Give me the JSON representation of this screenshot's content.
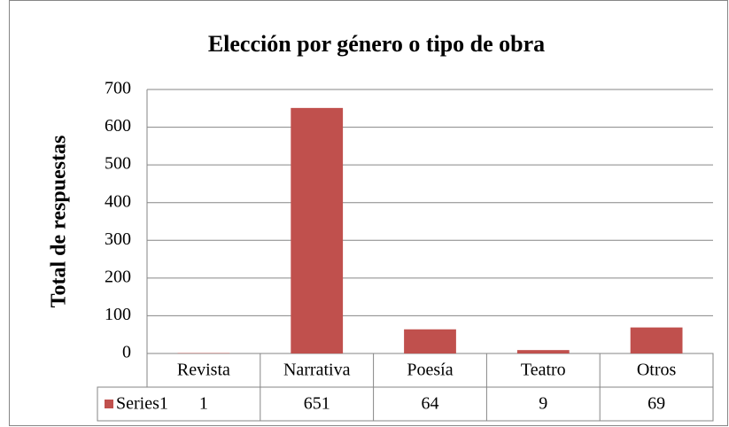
{
  "chart_data": {
    "type": "bar",
    "title": "Elección por género o tipo de obra",
    "y_label": "Total de respuestas",
    "categories": [
      "Revista",
      "Narrativa",
      "Poesía",
      "Teatro",
      "Otros"
    ],
    "series": [
      {
        "name": "Series1",
        "color": "#c0504d",
        "values": [
          1,
          651,
          64,
          9,
          69
        ]
      }
    ],
    "ylim": [
      0,
      700
    ],
    "yticks": [
      0,
      100,
      200,
      300,
      400,
      500,
      600,
      700
    ],
    "grid": true,
    "data_table": true
  }
}
